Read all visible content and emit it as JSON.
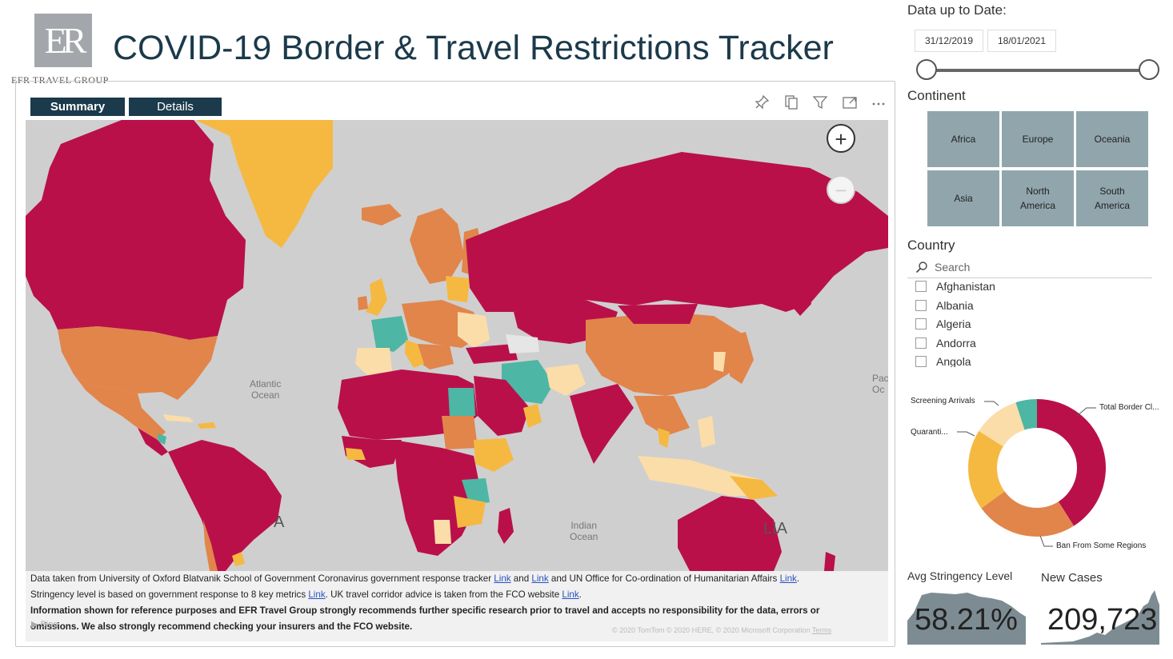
{
  "header": {
    "logo_text": "ER",
    "logo_subtitle": "EFR TRAVEL GROUP",
    "title": "COVID-19  Border & Travel Restrictions Tracker"
  },
  "tabs": [
    {
      "label": "Summary"
    },
    {
      "label": "Details"
    }
  ],
  "toolbar_icons": [
    "pin-icon",
    "copy-icon",
    "filter-icon",
    "focus-mode-icon",
    "more-options-icon"
  ],
  "map": {
    "oceans": [
      {
        "label": "Atlantic\nOcean"
      },
      {
        "label": "Indian\nOcean"
      },
      {
        "label": "Pac\nOc"
      }
    ],
    "partial_labels": [
      "A",
      "LIA"
    ],
    "bing_label": "Bing",
    "credit_text": "© 2020 TomTom © 2020 HERE, © 2020 Microsoft Corporation",
    "terms_text": "Terms",
    "colors": {
      "total_border_closure": "#b9104a",
      "ban_from_some_regions": "#e1854b",
      "quarantine": "#f5b942",
      "screening_arrivals": "#fbdda9",
      "no_restrictions": "#4db6a4",
      "land": "#e6e6e6",
      "water": "#cfcfcf"
    }
  },
  "notes": {
    "line1_a": "Data taken from University of Oxford Blatvanik School of Government Coronavirus government response tracker ",
    "link1": "Link",
    "line1_b": " and ",
    "link2": "Link",
    "line1_c": " and UN Office for Co-ordination of Humanitarian Affairs ",
    "link3": "Link",
    "line1_d": ".",
    "line2_a": "Stringency level is based on government response to 8 key metrics ",
    "link4": "Link",
    "line2_b": ".  UK travel corridor advice is taken from the FCO website ",
    "link5": "Link",
    "line2_c": ".",
    "line3": "Information shown for reference purposes and EFR Travel Group strongly recommends further specific research prior to travel and accepts no responsibility for the data, errors or",
    "line4": "omissions. We also strongly recommend checking your insurers and the FCO website."
  },
  "date_filter": {
    "label": "Data up to Date:",
    "start": "31/12/2019",
    "end": "18/01/2021"
  },
  "continent_filter": {
    "label": "Continent",
    "options": [
      "Africa",
      "Europe",
      "Oceania",
      "Asia",
      "North\nAmerica",
      "South\nAmerica"
    ]
  },
  "country_filter": {
    "label": "Country",
    "search_placeholder": "Search",
    "items": [
      "Afghanistan",
      "Albania",
      "Algeria",
      "Andorra",
      "Angola"
    ]
  },
  "donut": {
    "labels": {
      "total": "Total Border Cl...",
      "ban": "Ban From Some Regions",
      "quarantine": "Quaranti...",
      "screening": "Screening Arrivals"
    },
    "segments": [
      {
        "key": "total",
        "color": "#b9104a",
        "value": 41
      },
      {
        "key": "ban",
        "color": "#e1854b",
        "value": 24
      },
      {
        "key": "quarantine",
        "color": "#f5b942",
        "value": 19
      },
      {
        "key": "screening",
        "color": "#fbdda9",
        "value": 11
      },
      {
        "key": "open",
        "color": "#4db6a4",
        "value": 5
      }
    ]
  },
  "kpis": {
    "stringency_label": "Avg Stringency Level",
    "stringency_value": "58.21%",
    "cases_label": "New Cases",
    "cases_value": "209,723"
  }
}
